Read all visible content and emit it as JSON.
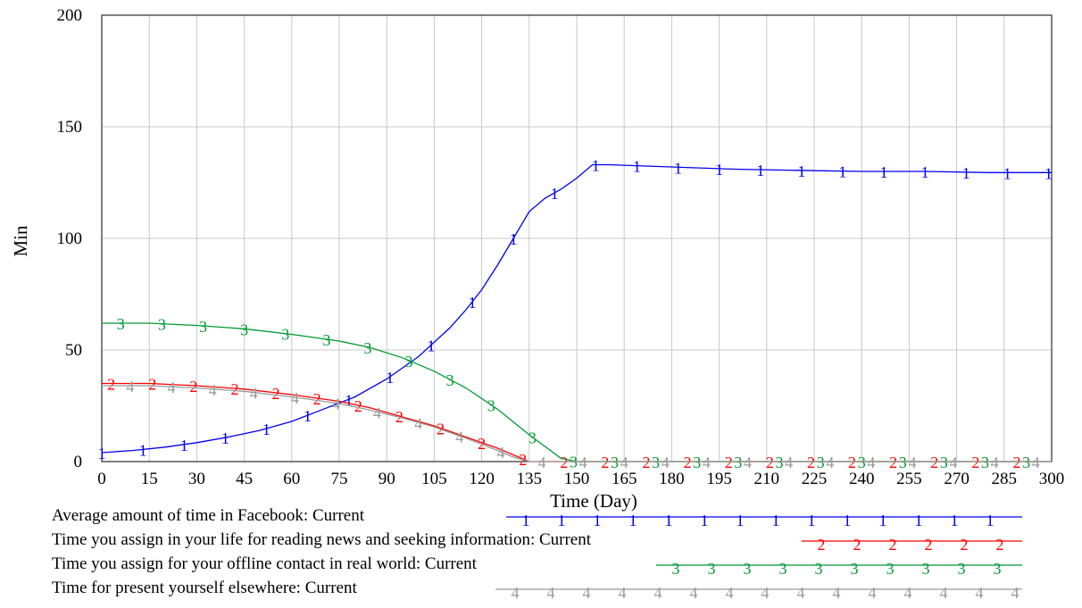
{
  "chart_data": {
    "type": "line",
    "xlabel": "Time (Day)",
    "ylabel": "Min",
    "xlim": [
      0,
      300
    ],
    "ylim": [
      0,
      200
    ],
    "xticks": [
      "0",
      "15",
      "30",
      "45",
      "60",
      "75",
      "90",
      "105",
      "120",
      "135",
      "150",
      "165",
      "180",
      "195",
      "210",
      "225",
      "240",
      "255",
      "270",
      "285",
      "300"
    ],
    "yticks": [
      "0",
      "50",
      "100",
      "150",
      "200"
    ],
    "grid": true,
    "series": [
      {
        "name": "Average amount of time in Facebook: Current",
        "marker": "1",
        "color": "#0000ee",
        "x": [
          0,
          10,
          20,
          30,
          40,
          50,
          60,
          70,
          80,
          90,
          100,
          110,
          115,
          120,
          125,
          130,
          135,
          140,
          145,
          150,
          155,
          160,
          180,
          200,
          220,
          240,
          260,
          280,
          300
        ],
        "y": [
          4,
          5,
          6.5,
          8.5,
          11,
          14,
          18,
          23.5,
          29,
          37,
          47,
          60,
          68,
          77,
          88,
          100,
          112,
          118,
          122,
          127,
          133,
          133,
          132,
          131,
          130.5,
          130,
          130,
          129.5,
          129.5
        ]
      },
      {
        "name": "Time you assign in your life for reading news and seeking information: Current",
        "marker": "2",
        "color": "#ff0000",
        "x": [
          0,
          15,
          30,
          45,
          60,
          75,
          85,
          95,
          105,
          115,
          125,
          130,
          135,
          140,
          150,
          200,
          250,
          300
        ],
        "y": [
          35,
          35,
          34,
          32.5,
          30,
          27,
          24,
          20,
          16,
          11,
          6,
          3,
          0,
          0,
          0,
          0,
          0,
          0
        ]
      },
      {
        "name": "Time you assign for your offline contact in real world: Current",
        "marker": "3",
        "color": "#009933",
        "x": [
          0,
          15,
          30,
          45,
          60,
          75,
          85,
          95,
          105,
          115,
          125,
          135,
          145,
          150,
          155,
          160,
          200,
          250,
          300
        ],
        "y": [
          62,
          62,
          61,
          59.5,
          57,
          54,
          51,
          46.5,
          40.5,
          33,
          23.5,
          12,
          1.5,
          0,
          0,
          0,
          0,
          0,
          0
        ]
      },
      {
        "name": "Time for present yourself elsewhere: Current",
        "marker": "4",
        "color": "#999999",
        "x": [
          0,
          15,
          30,
          45,
          60,
          75,
          85,
          95,
          105,
          115,
          125,
          130,
          135,
          140,
          150,
          200,
          250,
          300
        ],
        "y": [
          34,
          34,
          33,
          31.5,
          29,
          26,
          23,
          19.5,
          15.5,
          10.5,
          5,
          2,
          0,
          0,
          0,
          0,
          0,
          0
        ]
      }
    ],
    "legend_placement": "bottom"
  }
}
